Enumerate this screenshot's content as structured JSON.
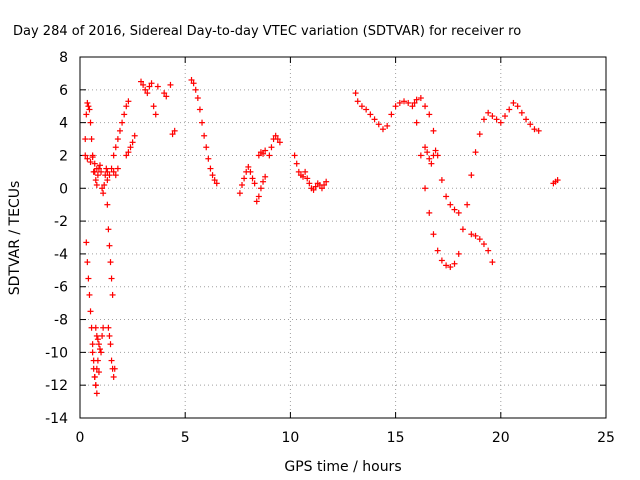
{
  "chart_data": {
    "type": "scatter",
    "title": "Day 284 of 2016, Sidereal Day-to-day VTEC variation (SDTVAR) for receiver ro",
    "xlabel": "GPS time / hours",
    "ylabel": "SDTVAR / TECUs",
    "xlim": [
      0,
      25
    ],
    "ylim": [
      -14,
      8
    ],
    "xticks": [
      0,
      5,
      10,
      15,
      20,
      25
    ],
    "yticks": [
      -14,
      -12,
      -10,
      -8,
      -6,
      -4,
      -2,
      0,
      2,
      4,
      6,
      8
    ],
    "grid": true,
    "marker": "+",
    "color": "#ff0000",
    "segments": [
      {
        "x": [
          0.25,
          0.3,
          0.35,
          0.4,
          0.45,
          0.5,
          0.55,
          0.6,
          0.65
        ],
        "y": [
          3.0,
          4.5,
          5.2,
          5.0,
          4.8,
          4.0,
          3.0,
          2.0,
          1.0
        ]
      },
      {
        "x": [
          0.25,
          0.35,
          0.5,
          0.6,
          0.7,
          0.8
        ],
        "y": [
          2.0,
          1.8,
          1.6,
          1.9,
          1.5,
          1.2
        ]
      },
      {
        "x": [
          0.3,
          0.35,
          0.4,
          0.45,
          0.5,
          0.55,
          0.6,
          0.65,
          0.7,
          0.75,
          0.8
        ],
        "y": [
          -3.3,
          -4.5,
          -5.5,
          -6.5,
          -7.5,
          -8.5,
          -9.5,
          -10.5,
          -11.5,
          -12.0,
          -12.5
        ]
      },
      {
        "x": [
          0.6,
          0.65,
          0.7,
          0.75,
          0.8,
          0.85,
          0.9
        ],
        "y": [
          -10.0,
          -11.0,
          -11.5,
          -12.0,
          -11.0,
          -10.5,
          -11.2
        ]
      },
      {
        "x": [
          0.75,
          0.8,
          0.85,
          0.9,
          0.95,
          1.0,
          1.05,
          1.1
        ],
        "y": [
          -8.5,
          -9.0,
          -9.2,
          -9.5,
          -9.8,
          -10.0,
          -9.0,
          -8.5
        ]
      },
      {
        "x": [
          0.7,
          0.75,
          0.8,
          0.85,
          0.9,
          0.95,
          1.0,
          1.05,
          1.1,
          1.15,
          1.2,
          1.25,
          1.3
        ],
        "y": [
          1.0,
          0.5,
          0.2,
          0.8,
          1.2,
          1.4,
          1.0,
          0.0,
          -0.3,
          0.2,
          0.8,
          1.2,
          1.0
        ]
      },
      {
        "x": [
          1.3,
          1.35,
          1.4,
          1.45,
          1.5,
          1.55
        ],
        "y": [
          -1.0,
          -2.5,
          -3.5,
          -4.5,
          -5.5,
          -6.5
        ]
      },
      {
        "x": [
          1.35,
          1.4,
          1.45,
          1.5,
          1.55,
          1.6,
          1.65
        ],
        "y": [
          -8.5,
          -9.0,
          -9.5,
          -10.5,
          -11.0,
          -11.5,
          -11.0
        ]
      },
      {
        "x": [
          1.3,
          1.4,
          1.5,
          1.6,
          1.7,
          1.8
        ],
        "y": [
          0.5,
          0.8,
          1.2,
          1.0,
          0.8,
          1.2
        ]
      },
      {
        "x": [
          1.6,
          1.7,
          1.8,
          1.9,
          2.0,
          2.1,
          2.2,
          2.3
        ],
        "y": [
          2.0,
          2.5,
          3.0,
          3.5,
          4.0,
          4.5,
          5.0,
          5.3
        ]
      },
      {
        "x": [
          2.2,
          2.3,
          2.4,
          2.5,
          2.6
        ],
        "y": [
          2.0,
          2.2,
          2.5,
          2.8,
          3.2
        ]
      },
      {
        "x": [
          2.9,
          3.0,
          3.1,
          3.2,
          3.3,
          3.4,
          3.5,
          3.6,
          3.7
        ],
        "y": [
          6.5,
          6.3,
          6.0,
          5.8,
          6.2,
          6.4,
          5.0,
          4.5,
          6.2
        ]
      },
      {
        "x": [
          4.0,
          4.1,
          4.3,
          4.4,
          4.5
        ],
        "y": [
          5.8,
          5.6,
          6.3,
          3.3,
          3.5
        ]
      },
      {
        "x": [
          5.3,
          5.4,
          5.5,
          5.6,
          5.7,
          5.8,
          5.9,
          6.0,
          6.1,
          6.2,
          6.3,
          6.4,
          6.5
        ],
        "y": [
          6.6,
          6.4,
          6.0,
          5.5,
          4.8,
          4.0,
          3.2,
          2.5,
          1.8,
          1.2,
          0.8,
          0.5,
          0.3
        ]
      },
      {
        "x": [
          7.6,
          7.7,
          7.8,
          7.9,
          8.0,
          8.1,
          8.2,
          8.3
        ],
        "y": [
          -0.3,
          0.2,
          0.6,
          1.0,
          1.3,
          1.0,
          0.6,
          0.3
        ]
      },
      {
        "x": [
          8.4,
          8.5,
          8.6,
          8.7,
          8.8
        ],
        "y": [
          -0.8,
          -0.5,
          0.0,
          0.4,
          0.7
        ]
      },
      {
        "x": [
          8.5,
          8.6,
          8.7,
          8.8
        ],
        "y": [
          2.0,
          2.2,
          2.1,
          2.3
        ]
      },
      {
        "x": [
          9.0,
          9.1,
          9.2,
          9.3,
          9.4,
          9.5
        ],
        "y": [
          2.0,
          2.5,
          3.0,
          3.2,
          3.0,
          2.8
        ]
      },
      {
        "x": [
          10.2,
          10.3,
          10.4,
          10.5,
          10.6,
          10.7,
          10.8,
          10.9,
          11.0,
          11.1,
          11.2,
          11.3,
          11.4,
          11.5,
          11.6,
          11.7
        ],
        "y": [
          2.0,
          1.5,
          1.0,
          0.8,
          0.7,
          1.0,
          0.6,
          0.3,
          0.0,
          -0.1,
          0.1,
          0.3,
          0.2,
          0.0,
          0.2,
          0.4
        ]
      },
      {
        "x": [
          13.1,
          13.2,
          13.4,
          13.6,
          13.8,
          14.0,
          14.2,
          14.4,
          14.6,
          14.8,
          15.0,
          15.2,
          15.4,
          15.6,
          15.8,
          16.0,
          16.2,
          16.4,
          16.6,
          16.8,
          17.0,
          17.2,
          17.4,
          17.6,
          17.8,
          18.0,
          18.2,
          18.4,
          18.6,
          18.8,
          19.0,
          19.2,
          19.4,
          19.6,
          19.8,
          20.0,
          20.2,
          20.4,
          20.6,
          20.8,
          21.0,
          21.2,
          21.4,
          21.6,
          21.8
        ],
        "y": [
          5.8,
          5.3,
          5.0,
          4.8,
          4.5,
          4.2,
          3.9,
          3.6,
          3.8,
          4.5,
          5.0,
          5.2,
          5.3,
          5.2,
          5.0,
          4.0,
          2.0,
          0.0,
          -1.5,
          -2.8,
          -3.8,
          -4.4,
          -4.7,
          -4.8,
          -4.6,
          -4.0,
          -2.5,
          -1.0,
          0.8,
          2.2,
          3.3,
          4.2,
          4.6,
          4.4,
          4.2,
          4.0,
          4.4,
          4.8,
          5.2,
          5.0,
          4.6,
          4.2,
          3.9,
          3.6,
          3.5
        ]
      },
      {
        "x": [
          15.9,
          16.0,
          16.2,
          16.4,
          16.6,
          16.8,
          17.0,
          17.2,
          17.4,
          17.6,
          17.8,
          18.0
        ],
        "y": [
          5.2,
          5.4,
          5.5,
          5.0,
          4.5,
          3.5,
          2.0,
          0.5,
          -0.5,
          -1.0,
          -1.3,
          -1.5
        ]
      },
      {
        "x": [
          16.4,
          16.5,
          16.6,
          16.7,
          16.8,
          16.9
        ],
        "y": [
          2.5,
          2.2,
          1.8,
          1.5,
          2.0,
          2.3
        ]
      },
      {
        "x": [
          18.6,
          18.8,
          19.0,
          19.2,
          19.4,
          19.6
        ],
        "y": [
          -2.8,
          -2.9,
          -3.1,
          -3.4,
          -3.8,
          -4.5
        ]
      },
      {
        "x": [
          22.5,
          22.6,
          22.7
        ],
        "y": [
          0.3,
          0.4,
          0.5
        ]
      }
    ]
  }
}
